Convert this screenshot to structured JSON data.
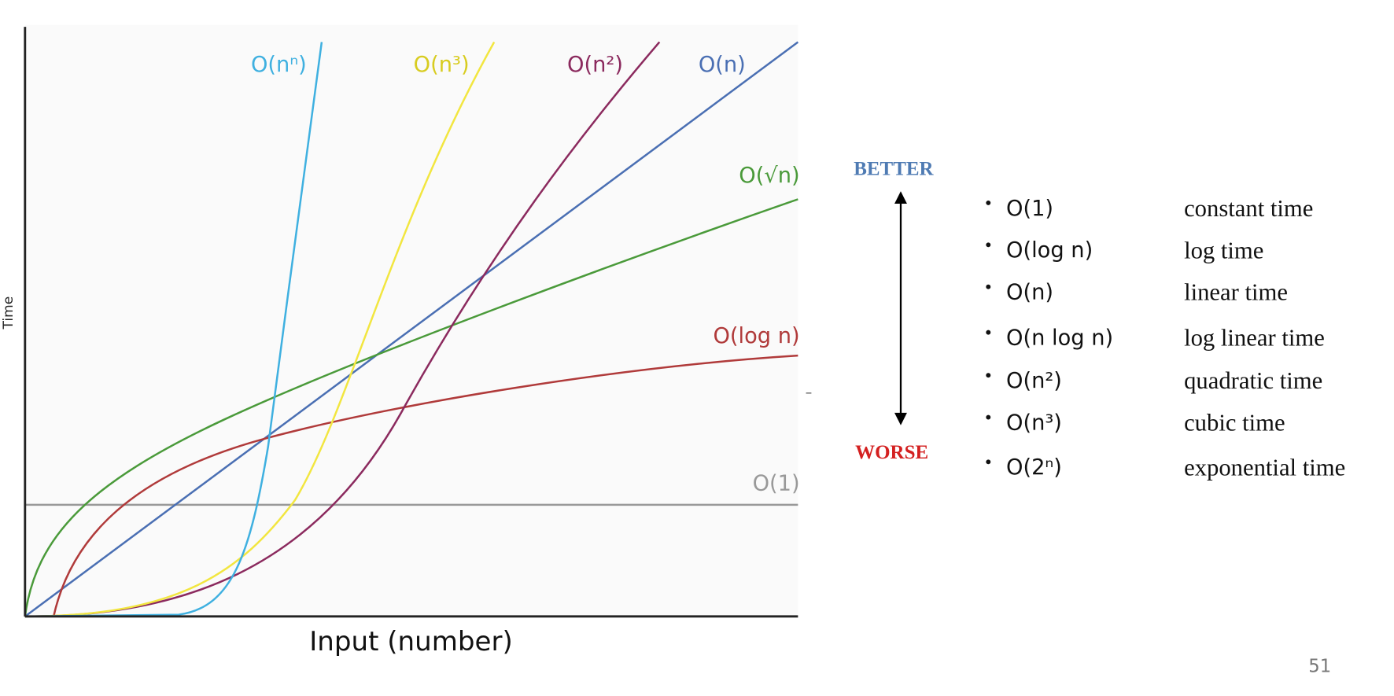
{
  "slide": {
    "chart": {
      "y_axis_label": "Time",
      "x_axis_label": "Input (number)",
      "curve_labels": [
        "O(nⁿ)",
        "O(n³)",
        "O(n²)",
        "O(n)",
        "O(√n)",
        "O(log n)",
        "O(1)"
      ]
    },
    "scale": {
      "top": "BETTER",
      "bottom": "WORSE"
    },
    "complexities": [
      {
        "notation": "O(1)",
        "name": "constant time"
      },
      {
        "notation": "O(log n)",
        "name": "log time"
      },
      {
        "notation": "O(n)",
        "name": "linear time"
      },
      {
        "notation": "O(n log n)",
        "name": "log linear time"
      },
      {
        "notation": "O(n²)",
        "name": "quadratic time"
      },
      {
        "notation": "O(n³)",
        "name": "cubic time"
      },
      {
        "notation": "O(2ⁿ)",
        "name": "exponential time"
      }
    ],
    "page_number": "51"
  }
}
